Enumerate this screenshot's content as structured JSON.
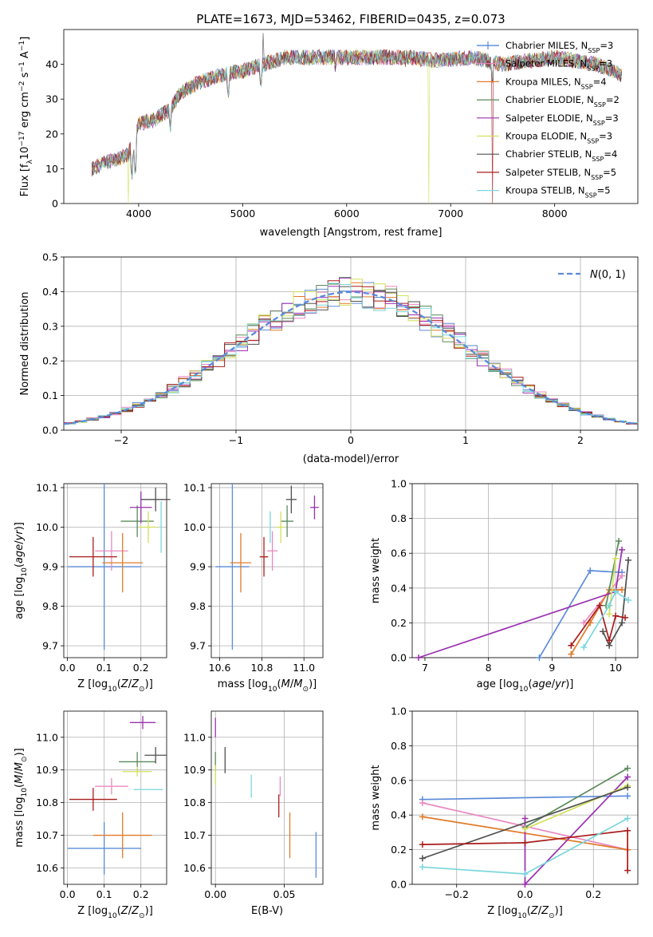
{
  "page_title": "PLATE=1673, MJD=53462, FIBERID=0435, z=0.073",
  "models": [
    {
      "name": "Chabrier MILES",
      "n": "3",
      "color": "#5b8bd9"
    },
    {
      "name": "Salpeter MILES",
      "n": "3",
      "color": "#e889c0"
    },
    {
      "name": "Kroupa MILES",
      "n": "4",
      "color": "#e07b2a"
    },
    {
      "name": "Chabrier ELODIE",
      "n": "2",
      "color": "#5a8a5a"
    },
    {
      "name": "Salpeter ELODIE",
      "n": "3",
      "color": "#9b30b0"
    },
    {
      "name": "Kroupa ELODIE",
      "n": "3",
      "color": "#d2e05a"
    },
    {
      "name": "Chabrier STELIB",
      "n": "4",
      "color": "#505050"
    },
    {
      "name": "Salpeter STELIB",
      "n": "5",
      "color": "#a81c1c"
    },
    {
      "name": "Kroupa STELIB",
      "n": "5",
      "color": "#7ad6dc"
    }
  ],
  "legend_suffix": {
    "n_label": "N",
    "n_sub": "SSP"
  },
  "chart_data": [
    {
      "id": "spectrum",
      "type": "line",
      "xlabel": "wavelength [Angstrom, rest frame]",
      "ylabel": "Flux [f_λ 10^-17 erg cm^-2 s^-1 A^-1]",
      "xlim": [
        3280,
        8800
      ],
      "ylim": [
        0,
        50
      ],
      "xticks": [
        4000,
        5000,
        6000,
        7000,
        8000
      ],
      "yticks": [
        0,
        10,
        20,
        30,
        40
      ],
      "legend": "right",
      "envelope": [
        [
          3550,
          10
        ],
        [
          3700,
          12
        ],
        [
          3900,
          14
        ],
        [
          4000,
          23
        ],
        [
          4150,
          24
        ],
        [
          4300,
          27
        ],
        [
          4400,
          32
        ],
        [
          4600,
          35
        ],
        [
          4800,
          37
        ],
        [
          5000,
          38
        ],
        [
          5200,
          40
        ],
        [
          5400,
          42
        ],
        [
          5600,
          42
        ],
        [
          5800,
          42
        ],
        [
          6000,
          42
        ],
        [
          6300,
          42
        ],
        [
          6600,
          42
        ],
        [
          6900,
          41
        ],
        [
          7200,
          42
        ],
        [
          7500,
          40
        ],
        [
          8000,
          42
        ],
        [
          8400,
          40
        ],
        [
          8650,
          37
        ]
      ],
      "absorption_lines": [
        [
          3934,
          5
        ],
        [
          3968,
          6
        ],
        [
          4101,
          20
        ],
        [
          4304,
          19
        ],
        [
          4861,
          28
        ],
        [
          5175,
          31
        ],
        [
          5893,
          36
        ],
        [
          6563,
          38
        ],
        [
          7400,
          33
        ]
      ],
      "spikes_high": [
        [
          5200,
          49
        ]
      ],
      "drops_to_zero": [
        [
          3900,
          "Kroupa ELODIE"
        ],
        [
          6790,
          "Kroupa ELODIE"
        ],
        [
          7400,
          "Salpeter STELIB"
        ]
      ]
    },
    {
      "id": "residuals",
      "type": "histogram",
      "xlabel": "(data-model)/error",
      "ylabel": "Normed distribution",
      "xlim": [
        -2.5,
        2.5
      ],
      "ylim": [
        0,
        0.5
      ],
      "xticks": [
        -2,
        -1,
        0,
        1,
        2
      ],
      "yticks": [
        0.0,
        0.1,
        0.2,
        0.3,
        0.4,
        0.5
      ],
      "reference_curve": {
        "label": "N(0,1)",
        "mean": 0,
        "sigma": 1,
        "color": "#5b8bd9"
      },
      "bin_width": 0.1
    },
    {
      "id": "age-vs-Z",
      "type": "scatter",
      "xlabel": "Z [log10(Z/Z⊙)]",
      "ylabel": "age  [log10(age/yr)]",
      "xlim": [
        -0.01,
        0.27
      ],
      "ylim": [
        9.67,
        10.11
      ],
      "xticks": [
        0.0,
        0.1,
        0.2
      ],
      "yticks": [
        9.7,
        9.8,
        9.9,
        10.0,
        10.1
      ],
      "points": [
        {
          "model": "Chabrier MILES",
          "x": 0.1,
          "xerr": 0.1,
          "y": 9.9,
          "yerr": 0.21
        },
        {
          "model": "Salpeter MILES",
          "x": 0.12,
          "xerr": 0.045,
          "y": 9.94,
          "yerr": 0.05
        },
        {
          "model": "Kroupa MILES",
          "x": 0.15,
          "xerr": 0.055,
          "y": 9.91,
          "yerr": 0.075
        },
        {
          "model": "Chabrier ELODIE",
          "x": 0.19,
          "xerr": 0.045,
          "y": 10.015,
          "yerr": 0.04
        },
        {
          "model": "Salpeter ELODIE",
          "x": 0.2,
          "xerr": 0.03,
          "y": 10.05,
          "yerr": 0.04
        },
        {
          "model": "Kroupa ELODIE",
          "x": 0.22,
          "xerr": 0.025,
          "y": 10.0,
          "yerr": 0.04
        },
        {
          "model": "Chabrier STELIB",
          "x": 0.24,
          "xerr": 0.04,
          "y": 10.07,
          "yerr": 0.03
        },
        {
          "model": "Salpeter STELIB",
          "x": 0.07,
          "xerr": 0.065,
          "y": 9.925,
          "yerr": 0.05
        },
        {
          "model": "Kroupa STELIB",
          "x": 0.255,
          "xerr": 0.0,
          "y": 10.0,
          "yerr": 0.065
        }
      ]
    },
    {
      "id": "age-vs-mass",
      "type": "scatter",
      "xlabel": "mass [log10(M/M⊙)]",
      "xlim": [
        10.56,
        11.09
      ],
      "ylim": [
        9.67,
        10.11
      ],
      "xticks": [
        10.6,
        10.8,
        11.0
      ],
      "yticks": [
        9.7,
        9.8,
        9.9,
        10.0,
        10.1
      ],
      "points": [
        {
          "model": "Chabrier MILES",
          "x": 10.66,
          "xerr": 0.08,
          "y": 9.9,
          "yerr": 0.21
        },
        {
          "model": "Salpeter MILES",
          "x": 10.85,
          "xerr": 0.025,
          "y": 9.94,
          "yerr": 0.05
        },
        {
          "model": "Kroupa MILES",
          "x": 10.7,
          "xerr": 0.05,
          "y": 9.91,
          "yerr": 0.075
        },
        {
          "model": "Chabrier ELODIE",
          "x": 10.92,
          "xerr": 0.03,
          "y": 10.015,
          "yerr": 0.04
        },
        {
          "model": "Salpeter ELODIE",
          "x": 11.05,
          "xerr": 0.02,
          "y": 10.05,
          "yerr": 0.03
        },
        {
          "model": "Kroupa ELODIE",
          "x": 10.89,
          "xerr": 0.02,
          "y": 10.0,
          "yerr": 0.04
        },
        {
          "model": "Chabrier STELIB",
          "x": 10.94,
          "xerr": 0.025,
          "y": 10.07,
          "yerr": 0.035
        },
        {
          "model": "Salpeter STELIB",
          "x": 10.81,
          "xerr": 0.02,
          "y": 9.925,
          "yerr": 0.05
        },
        {
          "model": "Kroupa STELIB",
          "x": 10.84,
          "xerr": 0.0,
          "y": 10.0,
          "yerr": 0.04
        }
      ]
    },
    {
      "id": "weight-vs-age",
      "type": "line",
      "xlabel": "age  [log10(age/yr)]",
      "ylabel": "mass weight",
      "xlim": [
        6.8,
        10.35
      ],
      "ylim": [
        0,
        1
      ],
      "xticks": [
        7,
        8,
        9,
        10
      ],
      "yticks": [
        0.0,
        0.2,
        0.4,
        0.6,
        0.8,
        1.0
      ],
      "series": [
        {
          "model": "Chabrier MILES",
          "points": [
            [
              8.8,
              0.0
            ],
            [
              9.6,
              0.5
            ],
            [
              10.1,
              0.49
            ]
          ]
        },
        {
          "model": "Salpeter MILES",
          "points": [
            [
              9.5,
              0.2
            ],
            [
              10.1,
              0.47
            ]
          ]
        },
        {
          "model": "Kroupa MILES",
          "points": [
            [
              9.3,
              0.02
            ],
            [
              9.6,
              0.2
            ],
            [
              9.9,
              0.39
            ],
            [
              10.1,
              0.39
            ]
          ]
        },
        {
          "model": "Chabrier ELODIE",
          "points": [
            [
              9.85,
              0.3
            ],
            [
              10.05,
              0.67
            ]
          ]
        },
        {
          "model": "Salpeter ELODIE",
          "points": [
            [
              6.9,
              0.0
            ],
            [
              10.0,
              0.38
            ],
            [
              10.1,
              0.62
            ]
          ]
        },
        {
          "model": "Kroupa ELODIE",
          "points": [
            [
              9.9,
              0.25
            ],
            [
              10.0,
              0.57
            ]
          ]
        },
        {
          "model": "Chabrier STELIB",
          "points": [
            [
              9.8,
              0.15
            ],
            [
              9.9,
              0.07
            ],
            [
              10.1,
              0.2
            ],
            [
              10.2,
              0.56
            ]
          ]
        },
        {
          "model": "Salpeter STELIB",
          "points": [
            [
              9.3,
              0.07
            ],
            [
              9.75,
              0.3
            ],
            [
              9.9,
              0.1
            ],
            [
              10.0,
              0.24
            ],
            [
              10.15,
              0.23
            ]
          ]
        },
        {
          "model": "Kroupa STELIB",
          "points": [
            [
              9.5,
              0.06
            ],
            [
              9.9,
              0.3
            ],
            [
              10.0,
              0.38
            ],
            [
              10.2,
              0.33
            ]
          ]
        }
      ]
    },
    {
      "id": "mass-vs-Z",
      "type": "scatter",
      "xlabel": "Z [log10(Z/Z⊙)]",
      "ylabel": "mass [log10(M/M⊙)]",
      "xlim": [
        -0.01,
        0.27
      ],
      "ylim": [
        10.55,
        11.08
      ],
      "xticks": [
        0.0,
        0.1,
        0.2
      ],
      "yticks": [
        10.6,
        10.7,
        10.8,
        10.9,
        11.0
      ],
      "points": [
        {
          "model": "Chabrier MILES",
          "x": 0.1,
          "xerr": 0.1,
          "y": 10.66,
          "yerr": 0.08
        },
        {
          "model": "Salpeter MILES",
          "x": 0.12,
          "xerr": 0.045,
          "y": 10.85,
          "yerr": 0.025
        },
        {
          "model": "Kroupa MILES",
          "x": 0.15,
          "xerr": 0.08,
          "y": 10.7,
          "yerr": 0.07
        },
        {
          "model": "Chabrier ELODIE",
          "x": 0.19,
          "xerr": 0.05,
          "y": 10.925,
          "yerr": 0.03
        },
        {
          "model": "Salpeter ELODIE",
          "x": 0.205,
          "xerr": 0.035,
          "y": 11.045,
          "yerr": 0.02
        },
        {
          "model": "Kroupa ELODIE",
          "x": 0.19,
          "xerr": 0.04,
          "y": 10.895,
          "yerr": 0.015
        },
        {
          "model": "Chabrier STELIB",
          "x": 0.24,
          "xerr": 0.03,
          "y": 10.945,
          "yerr": 0.025
        },
        {
          "model": "Salpeter STELIB",
          "x": 0.07,
          "xerr": 0.065,
          "y": 10.81,
          "yerr": 0.035
        },
        {
          "model": "Kroupa STELIB",
          "x": 0.22,
          "xerr": 0.04,
          "y": 10.84,
          "yerr": 0.0
        }
      ]
    },
    {
      "id": "mass-vs-ebv",
      "type": "scatter",
      "xlabel": "E(B-V)",
      "xlim": [
        -0.003,
        0.078
      ],
      "ylim": [
        10.55,
        11.08
      ],
      "xticks": [
        0.0,
        0.05
      ],
      "yticks": [
        10.6,
        10.7,
        10.8,
        10.9,
        11.0
      ],
      "points": [
        {
          "model": "Chabrier MILES",
          "x": 0.073,
          "y": 10.64,
          "yerr": 0.07
        },
        {
          "model": "Salpeter MILES",
          "x": 0.047,
          "y": 10.85,
          "yerr": 0.03
        },
        {
          "model": "Kroupa MILES",
          "x": 0.054,
          "y": 10.7,
          "yerr": 0.07
        },
        {
          "model": "Chabrier ELODIE",
          "x": 0.0,
          "y": 10.925,
          "yerr": 0.03
        },
        {
          "model": "Salpeter ELODIE",
          "x": 0.0,
          "y": 11.03,
          "yerr": 0.03
        },
        {
          "model": "Kroupa ELODIE",
          "x": 0.0,
          "y": 10.885,
          "yerr": 0.03
        },
        {
          "model": "Chabrier STELIB",
          "x": 0.007,
          "y": 10.93,
          "yerr": 0.04
        },
        {
          "model": "Salpeter STELIB",
          "x": 0.046,
          "y": 10.79,
          "yerr": 0.035
        },
        {
          "model": "Kroupa STELIB",
          "x": 0.026,
          "y": 10.85,
          "yerr": 0.035
        }
      ]
    },
    {
      "id": "weight-vs-Z",
      "type": "line",
      "xlabel": "Z [log10(Z/Z⊙)]",
      "ylabel": "mass weight",
      "xlim": [
        -0.33,
        0.33
      ],
      "ylim": [
        0,
        1
      ],
      "xticks": [
        -0.2,
        0.0,
        0.2
      ],
      "yticks": [
        0.0,
        0.2,
        0.4,
        0.6,
        0.8,
        1.0
      ],
      "series": [
        {
          "model": "Chabrier MILES",
          "points": [
            [
              -0.3,
              0.49
            ],
            [
              0.3,
              0.51
            ]
          ]
        },
        {
          "model": "Salpeter MILES",
          "points": [
            [
              -0.3,
              0.47
            ],
            [
              0.3,
              0.2
            ]
          ]
        },
        {
          "model": "Kroupa MILES",
          "points": [
            [
              -0.3,
              0.39
            ],
            [
              0.3,
              0.2
            ]
          ]
        },
        {
          "model": "Chabrier ELODIE",
          "points": [
            [
              0.0,
              0.33
            ],
            [
              0.3,
              0.67
            ]
          ]
        },
        {
          "model": "Salpeter ELODIE",
          "points": [
            [
              0.0,
              0.38
            ],
            [
              0.0,
              0.0
            ],
            [
              0.3,
              0.62
            ]
          ]
        },
        {
          "model": "Kroupa ELODIE",
          "points": [
            [
              0.0,
              0.32
            ],
            [
              0.3,
              0.57
            ]
          ]
        },
        {
          "model": "Chabrier STELIB",
          "points": [
            [
              -0.3,
              0.15
            ],
            [
              0.3,
              0.56
            ]
          ]
        },
        {
          "model": "Salpeter STELIB",
          "points": [
            [
              -0.3,
              0.23
            ],
            [
              0.0,
              0.24
            ],
            [
              0.3,
              0.31
            ],
            [
              0.3,
              0.08
            ]
          ]
        },
        {
          "model": "Kroupa STELIB",
          "points": [
            [
              -0.3,
              0.1
            ],
            [
              0.0,
              0.06
            ],
            [
              0.3,
              0.38
            ]
          ]
        }
      ]
    }
  ]
}
